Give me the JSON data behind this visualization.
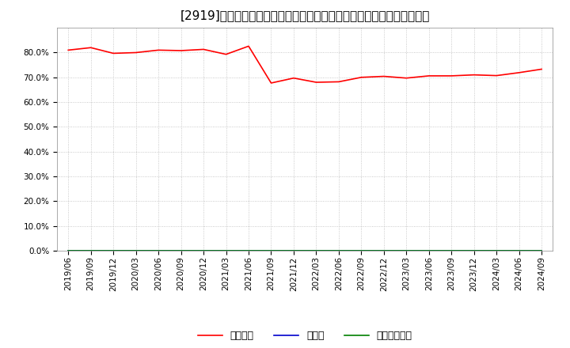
{
  "title": "[2919]　自己資本、のれん、繰延税金資産の総資産に対する比率の推移",
  "x_labels": [
    "2019/06",
    "2019/09",
    "2019/12",
    "2020/03",
    "2020/06",
    "2020/09",
    "2020/12",
    "2021/03",
    "2021/06",
    "2021/09",
    "2021/12",
    "2022/03",
    "2022/06",
    "2022/09",
    "2022/12",
    "2023/03",
    "2023/06",
    "2023/09",
    "2023/12",
    "2024/03",
    "2024/06",
    "2024/09"
  ],
  "equity_ratio": [
    0.81,
    0.82,
    0.797,
    0.8,
    0.81,
    0.808,
    0.813,
    0.793,
    0.826,
    0.677,
    0.697,
    0.68,
    0.682,
    0.7,
    0.704,
    0.697,
    0.706,
    0.706,
    0.71,
    0.707,
    0.719,
    0.733
  ],
  "goodwill_ratio": [
    0.0,
    0.0,
    0.0,
    0.0,
    0.0,
    0.0,
    0.0,
    0.0,
    0.0,
    0.0,
    0.0,
    0.0,
    0.0,
    0.0,
    0.0,
    0.0,
    0.0,
    0.0,
    0.0,
    0.0,
    0.0,
    0.0
  ],
  "deferred_tax_ratio": [
    0.0,
    0.0,
    0.0,
    0.0,
    0.0,
    0.0,
    0.0,
    0.0,
    0.0,
    0.0,
    0.0,
    0.0,
    0.0,
    0.0,
    0.0,
    0.0,
    0.0,
    0.0,
    0.0,
    0.0,
    0.0,
    0.0
  ],
  "equity_color": "#ff0000",
  "goodwill_color": "#0000cc",
  "deferred_tax_color": "#008000",
  "equity_label": "自己資本",
  "goodwill_label": "のれん",
  "deferred_tax_label": "繰延税金資産",
  "ylim": [
    0.0,
    0.9
  ],
  "yticks": [
    0.0,
    0.1,
    0.2,
    0.3,
    0.4,
    0.5,
    0.6,
    0.7,
    0.8
  ],
  "background_color": "#ffffff",
  "grid_color": "#aaaaaa",
  "title_fontsize": 11,
  "legend_fontsize": 9,
  "tick_fontsize": 7.5
}
